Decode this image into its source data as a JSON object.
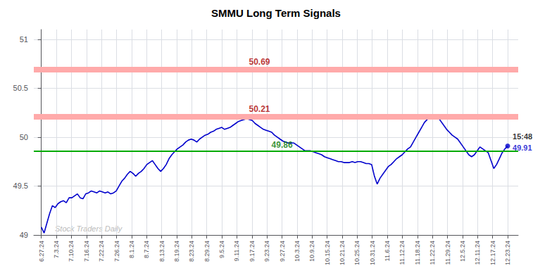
{
  "chart_data": {
    "type": "line",
    "title": "SMMU Long Term Signals",
    "watermark": "Stock Traders Daily",
    "color": "#0000cc",
    "grid": true,
    "xlim": [
      -0.5,
      31.7
    ],
    "xticks": [
      {
        "value": 0,
        "label": "6.27.24"
      },
      {
        "value": 1,
        "label": "7.3.24"
      },
      {
        "value": 2,
        "label": "7.10.24"
      },
      {
        "value": 3,
        "label": "7.16.24"
      },
      {
        "value": 4,
        "label": "7.22.24"
      },
      {
        "value": 5,
        "label": "7.26.24"
      },
      {
        "value": 6,
        "label": "8.1.24"
      },
      {
        "value": 7,
        "label": "8.7.24"
      },
      {
        "value": 8,
        "label": "8.13.24"
      },
      {
        "value": 9,
        "label": "8.19.24"
      },
      {
        "value": 10,
        "label": "8.23.24"
      },
      {
        "value": 11,
        "label": "8.29.24"
      },
      {
        "value": 12,
        "label": "9.5.24"
      },
      {
        "value": 13,
        "label": "9.11.24"
      },
      {
        "value": 14,
        "label": "9.17.24"
      },
      {
        "value": 15,
        "label": "9.23.24"
      },
      {
        "value": 16,
        "label": "9.27.24"
      },
      {
        "value": 17,
        "label": "10.3.24"
      },
      {
        "value": 18,
        "label": "10.9.24"
      },
      {
        "value": 19,
        "label": "10.15.24"
      },
      {
        "value": 20,
        "label": "10.21.24"
      },
      {
        "value": 21,
        "label": "10.25.24"
      },
      {
        "value": 22,
        "label": "10.31.24"
      },
      {
        "value": 23,
        "label": "11.6.24"
      },
      {
        "value": 24,
        "label": "11.12.24"
      },
      {
        "value": 25,
        "label": "11.18.24"
      },
      {
        "value": 26,
        "label": "11.22.24"
      },
      {
        "value": 27,
        "label": "11.29.24"
      },
      {
        "value": 28,
        "label": "12.5.24"
      },
      {
        "value": 29,
        "label": "12.11.24"
      },
      {
        "value": 30,
        "label": "12.17.24"
      },
      {
        "value": 31,
        "label": "12.23.24"
      }
    ],
    "ylim": [
      49.0,
      51.1
    ],
    "yticks": [
      49.0,
      49.5,
      50.0,
      50.5,
      51.0
    ],
    "values": [
      49.08,
      49.02,
      49.12,
      49.22,
      49.3,
      49.28,
      49.32,
      49.34,
      49.35,
      49.33,
      49.38,
      49.38,
      49.4,
      49.42,
      49.38,
      49.37,
      49.42,
      49.43,
      49.45,
      49.44,
      49.43,
      49.45,
      49.44,
      49.43,
      49.44,
      49.42,
      49.43,
      49.45,
      49.5,
      49.55,
      49.58,
      49.62,
      49.65,
      49.63,
      49.6,
      49.63,
      49.65,
      49.68,
      49.72,
      49.74,
      49.76,
      49.72,
      49.68,
      49.65,
      49.68,
      49.72,
      49.78,
      49.82,
      49.85,
      49.88,
      49.9,
      49.92,
      49.95,
      49.97,
      49.98,
      49.97,
      49.95,
      49.98,
      50.0,
      50.02,
      50.03,
      50.05,
      50.06,
      50.08,
      50.09,
      50.1,
      50.08,
      50.09,
      50.1,
      50.12,
      50.14,
      50.16,
      50.17,
      50.18,
      50.19,
      50.18,
      50.17,
      50.14,
      50.12,
      50.1,
      50.08,
      50.07,
      50.06,
      50.05,
      50.02,
      50.0,
      49.98,
      49.96,
      49.95,
      49.94,
      49.94,
      49.94,
      49.92,
      49.9,
      49.88,
      49.86,
      49.86,
      49.86,
      49.85,
      49.84,
      49.83,
      49.82,
      49.8,
      49.79,
      49.78,
      49.77,
      49.76,
      49.75,
      49.75,
      49.74,
      49.74,
      49.74,
      49.75,
      49.74,
      49.75,
      49.75,
      49.74,
      49.73,
      49.73,
      49.72,
      49.6,
      49.52,
      49.58,
      49.62,
      49.66,
      49.7,
      49.72,
      49.75,
      49.78,
      49.8,
      49.82,
      49.85,
      49.88,
      49.9,
      49.95,
      50.0,
      50.05,
      50.1,
      50.15,
      50.18,
      50.2,
      50.22,
      50.22,
      50.2,
      50.16,
      50.12,
      50.08,
      50.05,
      50.02,
      50.0,
      49.98,
      49.94,
      49.9,
      49.86,
      49.82,
      49.8,
      49.82,
      49.86,
      49.9,
      49.88,
      49.86,
      49.84,
      49.76,
      49.68,
      49.72,
      49.78,
      49.84,
      49.88,
      49.91
    ],
    "hlines": [
      {
        "value": 50.21,
        "label": "50.21",
        "color": "#ffaaaa",
        "label_color": "#aa0000"
      },
      {
        "value": 50.69,
        "label": "50.69",
        "color": "#ffaaaa",
        "label_color": "#aa0000"
      },
      {
        "value": 49.86,
        "label": "49.86",
        "color": "#00aa00",
        "label_color": "#007700"
      }
    ],
    "annotations": [
      {
        "text": "15:48",
        "color": "#000000"
      },
      {
        "text": "49.91",
        "color": "#0000cc"
      }
    ]
  }
}
